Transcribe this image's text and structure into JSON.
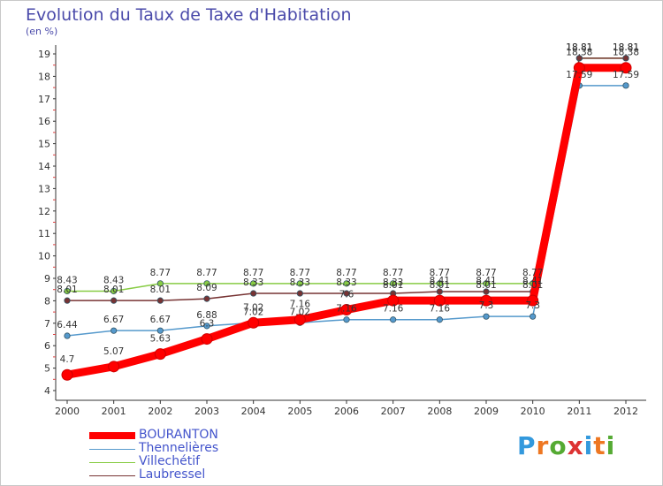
{
  "chart_data": {
    "type": "line",
    "title": "Evolution du Taux de Taxe d'Habitation",
    "unit_label": "(en %)",
    "xlabel": "",
    "ylabel": "",
    "ylim": [
      4,
      19
    ],
    "yticks": [
      "4",
      "5",
      "6",
      "7",
      "8",
      "9",
      "10",
      "11",
      "12",
      "13",
      "14",
      "15",
      "16",
      "17",
      "18",
      "19"
    ],
    "categories": [
      "2000",
      "2001",
      "2002",
      "2003",
      "2004",
      "2005",
      "2006",
      "2007",
      "2008",
      "2009",
      "2010",
      "2011",
      "2012"
    ],
    "series": [
      {
        "name": "BOURANTON",
        "color": "#ff0000",
        "values": [
          4.7,
          5.07,
          5.63,
          6.3,
          7.02,
          7.16,
          7.6,
          8.01,
          8.01,
          8.01,
          8.01,
          18.38,
          18.38
        ],
        "labels": [
          "4.7",
          "5.07",
          "5.63",
          "6.3",
          "7.02",
          "7.16",
          "7.6",
          "8.01",
          "8.01",
          "8.01",
          "8.01",
          "18.38",
          "18.38"
        ]
      },
      {
        "name": "Thennelières",
        "color": "#5599cc",
        "values": [
          6.44,
          6.67,
          6.67,
          6.88,
          7.02,
          7.02,
          7.16,
          7.16,
          7.16,
          7.3,
          7.3,
          17.59,
          17.59
        ],
        "labels": [
          "6.44",
          "6.67",
          "6.67",
          "6.88",
          "7.02",
          "7.02",
          "7.16",
          "7.16",
          "7.16",
          "7.3",
          "7.3",
          "17.59",
          "17.59"
        ]
      },
      {
        "name": "Villechétif",
        "color": "#88cc44",
        "values": [
          8.43,
          8.43,
          8.77,
          8.77,
          8.77,
          8.77,
          8.77,
          8.77,
          8.77,
          8.77,
          8.77,
          18.81,
          18.81
        ],
        "labels": [
          "8.43",
          "8.43",
          "8.77",
          "8.77",
          "8.77",
          "8.77",
          "8.77",
          "8.77",
          "8.77",
          "8.77",
          "8.77",
          "18.81",
          "18.81"
        ]
      },
      {
        "name": "Laubressel",
        "color": "#773333",
        "values": [
          8.01,
          8.01,
          8.01,
          8.09,
          8.33,
          8.33,
          8.33,
          8.33,
          8.41,
          8.41,
          8.41,
          18.81,
          18.81
        ],
        "labels": [
          "8.01",
          "8.01",
          "8.01",
          "8.09",
          "8.33",
          "8.33",
          "8.33",
          "8.33",
          "8.41",
          "8.41",
          "8.41",
          "18.81",
          "18.81"
        ]
      }
    ]
  },
  "legend": {
    "items": [
      {
        "label": "BOURANTON",
        "color": "#ff0000",
        "text_color": "#4455cc"
      },
      {
        "label": "Thennelières",
        "color": "#5599cc",
        "text_color": "#4455cc"
      },
      {
        "label": "Villechétif",
        "color": "#88cc44",
        "text_color": "#4455cc"
      },
      {
        "label": "Laubressel",
        "color": "#773333",
        "text_color": "#4455cc"
      }
    ]
  },
  "brand": {
    "text": "Proxiti",
    "colors": [
      "#3399dd",
      "#ee7722",
      "#55aa33",
      "#dd3333",
      "#3399dd",
      "#ee7722",
      "#55aa33"
    ]
  }
}
